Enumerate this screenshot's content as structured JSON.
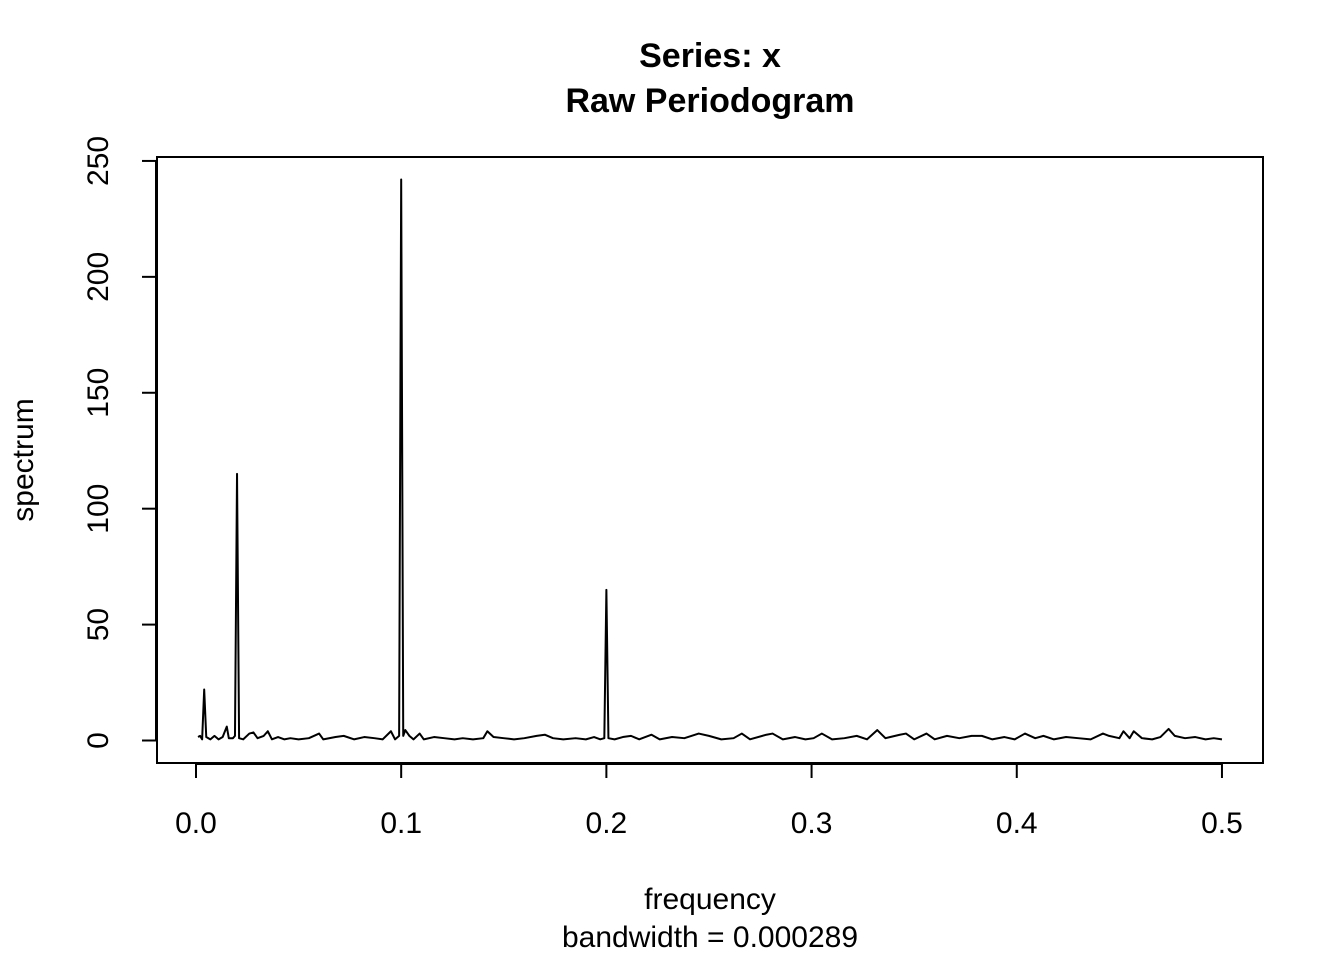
{
  "chart_data": {
    "type": "line",
    "title": "Series: x",
    "subtitle": "Raw Periodogram",
    "x_label": "frequency",
    "x_sublabel": "bandwidth = 0.000289",
    "y_label": "spectrum",
    "color": "#000000",
    "xlim": [
      -0.019,
      0.52
    ],
    "ylim": [
      -9.7,
      251.7
    ],
    "xticks": [
      {
        "value": 0,
        "label": "0.0"
      },
      0.1,
      0.2,
      0.3,
      0.4,
      0.5
    ],
    "yticks": [
      0,
      50,
      100,
      150,
      200,
      250
    ],
    "x": [
      0.001,
      0.002,
      0.003,
      0.004,
      0.005,
      0.007,
      0.009,
      0.011,
      0.013,
      0.015,
      0.016,
      0.018,
      0.019,
      0.02,
      0.021,
      0.023,
      0.026,
      0.028,
      0.03,
      0.033,
      0.035,
      0.037,
      0.04,
      0.043,
      0.046,
      0.05,
      0.055,
      0.06,
      0.062,
      0.068,
      0.072,
      0.077,
      0.082,
      0.087,
      0.091,
      0.095,
      0.097,
      0.099,
      0.1,
      0.101,
      0.102,
      0.104,
      0.106,
      0.109,
      0.111,
      0.116,
      0.121,
      0.126,
      0.13,
      0.135,
      0.14,
      0.142,
      0.145,
      0.15,
      0.155,
      0.16,
      0.166,
      0.17,
      0.174,
      0.179,
      0.185,
      0.19,
      0.194,
      0.197,
      0.199,
      0.2,
      0.201,
      0.204,
      0.208,
      0.212,
      0.216,
      0.222,
      0.226,
      0.232,
      0.238,
      0.245,
      0.25,
      0.256,
      0.262,
      0.266,
      0.27,
      0.278,
      0.281,
      0.286,
      0.292,
      0.297,
      0.301,
      0.305,
      0.31,
      0.316,
      0.322,
      0.327,
      0.332,
      0.336,
      0.343,
      0.346,
      0.35,
      0.356,
      0.36,
      0.366,
      0.372,
      0.378,
      0.383,
      0.388,
      0.394,
      0.399,
      0.404,
      0.409,
      0.413,
      0.418,
      0.424,
      0.43,
      0.436,
      0.442,
      0.445,
      0.45,
      0.452,
      0.455,
      0.457,
      0.461,
      0.466,
      0.47,
      0.474,
      0.477,
      0.482,
      0.487,
      0.492,
      0.496,
      0.5
    ],
    "values": [
      1.5,
      2,
      0.5,
      22,
      1.5,
      0.5,
      2,
      0.5,
      1.5,
      6,
      1,
      1,
      2,
      115,
      1,
      0.5,
      3,
      3.5,
      1,
      2,
      4,
      0.5,
      1.5,
      0.5,
      1,
      0.5,
      1,
      3,
      0.5,
      1.5,
      2,
      0.5,
      1.5,
      1,
      0.5,
      4,
      0.5,
      2,
      242,
      2,
      4.5,
      2,
      0.5,
      3,
      0.5,
      1.5,
      1,
      0.5,
      1,
      0.5,
      1,
      4,
      1.5,
      1,
      0.5,
      1,
      2,
      2.5,
      1,
      0.5,
      1,
      0.5,
      1.5,
      0.5,
      1,
      65,
      1,
      0.5,
      1.5,
      2,
      0.5,
      2.5,
      0.5,
      1.5,
      1,
      3,
      2,
      0.5,
      1,
      3,
      0.5,
      2.5,
      3,
      0.5,
      1.5,
      0.5,
      1,
      3,
      0.5,
      1,
      2,
      0.5,
      4.5,
      1,
      2.5,
      3,
      0.5,
      3,
      0.5,
      2,
      1,
      2,
      2,
      0.5,
      1.5,
      0.5,
      3,
      1,
      2,
      0.5,
      1.5,
      1,
      0.5,
      3,
      2,
      1,
      4,
      1,
      4,
      1,
      0.5,
      1.5,
      5,
      2,
      1,
      1.5,
      0.5,
      1,
      0.5
    ]
  }
}
